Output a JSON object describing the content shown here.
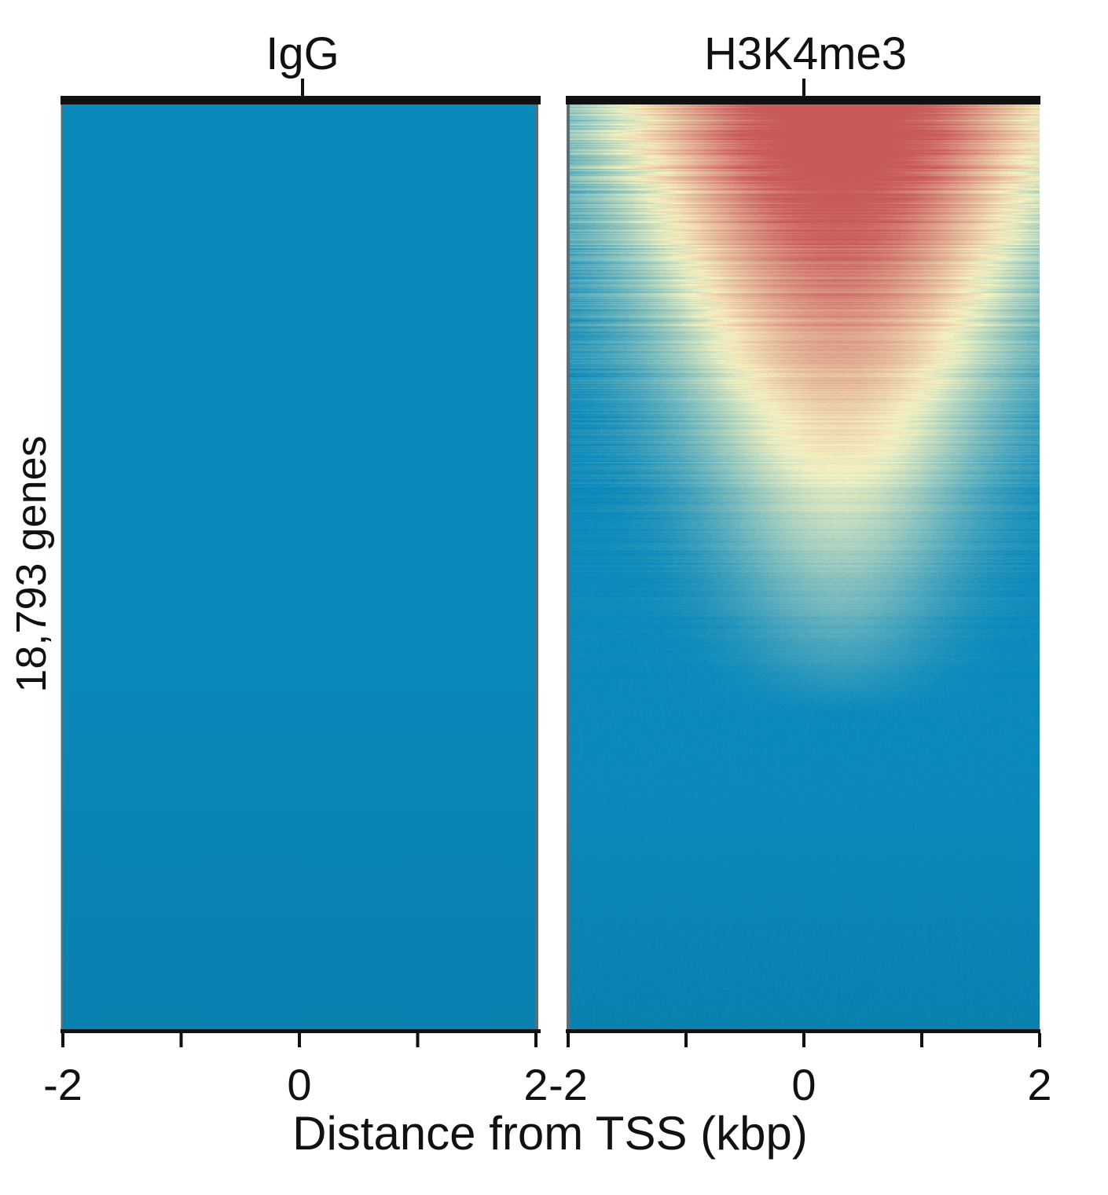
{
  "chart_data": [
    {
      "type": "heatmap",
      "title": "IgG",
      "ylabel": "18,793 genes",
      "xlabel": "Distance from TSS (kbp)",
      "x_ticks": [
        -2,
        -1,
        0,
        1,
        2
      ],
      "x_tick_labels": [
        "-2",
        "0",
        "2"
      ],
      "xlim": [
        -2,
        2
      ],
      "rows": 18793,
      "colormap": {
        "low": "#0a89bb",
        "mid": "#f6f3c2",
        "high": "#c95a5a"
      },
      "signal": "uniformly low (background) across all genes and positions"
    },
    {
      "type": "heatmap",
      "title": "H3K4me3",
      "xlabel": "Distance from TSS (kbp)",
      "x_ticks": [
        -2,
        -1,
        0,
        1,
        2
      ],
      "x_tick_labels": [
        "-2",
        "0",
        "2"
      ],
      "xlim": [
        -2,
        2
      ],
      "rows": 18793,
      "colormap": {
        "low": "#0a89bb",
        "mid": "#f6f3c2",
        "high": "#c95a5a"
      },
      "signal": "high signal centered just downstream of TSS (~0.3 kbp), strongest in top-ranked genes and narrowing to background by about 60% of rows",
      "peak_center_kbp": 0.3
    }
  ]
}
